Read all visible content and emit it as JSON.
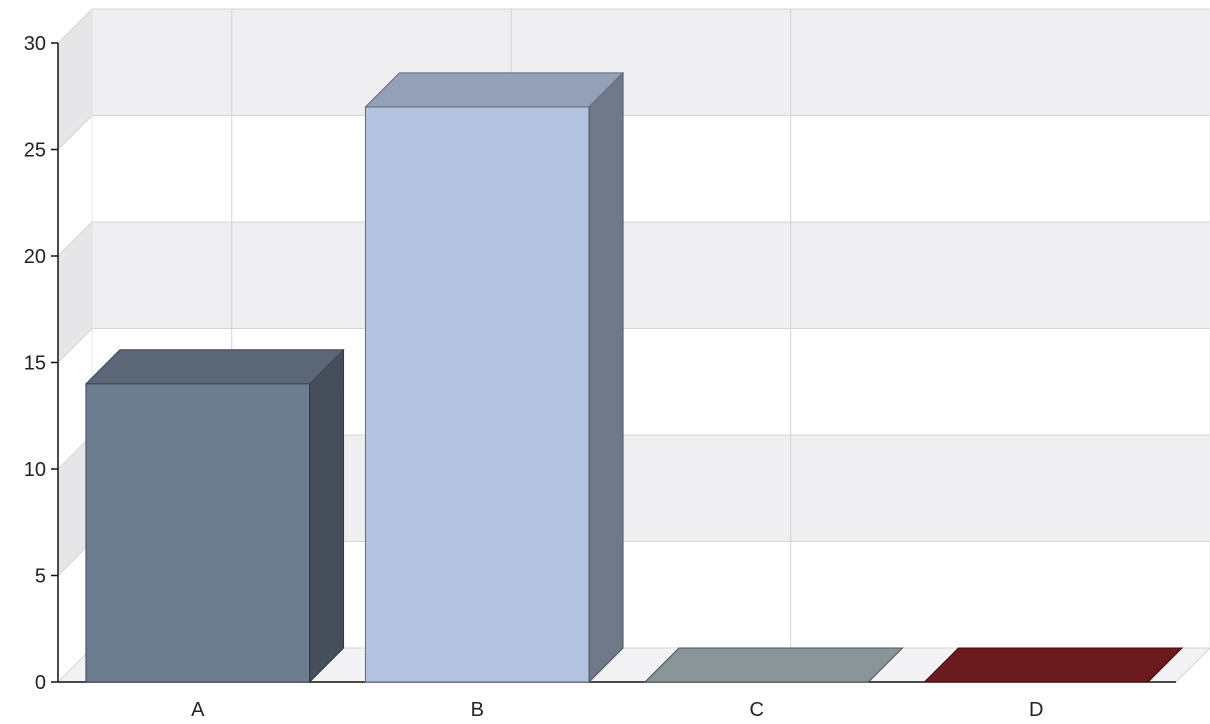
{
  "chart_data": {
    "type": "bar",
    "style": "3d",
    "title": "",
    "xlabel": "",
    "ylabel": "",
    "categories": [
      "A",
      "B",
      "C",
      "D"
    ],
    "values": [
      14,
      27,
      0,
      0
    ],
    "ylim": [
      0,
      30
    ],
    "yticks": [
      0,
      5,
      10,
      15,
      20,
      25,
      30
    ],
    "grid": true,
    "legend": "none",
    "colors": {
      "bars": [
        "#6f7d91",
        "#b3c3df",
        "#8a9599",
        "#6b1a1e"
      ],
      "grid": "#d4d4d8",
      "band": "#efeff1",
      "axis": "#111111"
    }
  }
}
